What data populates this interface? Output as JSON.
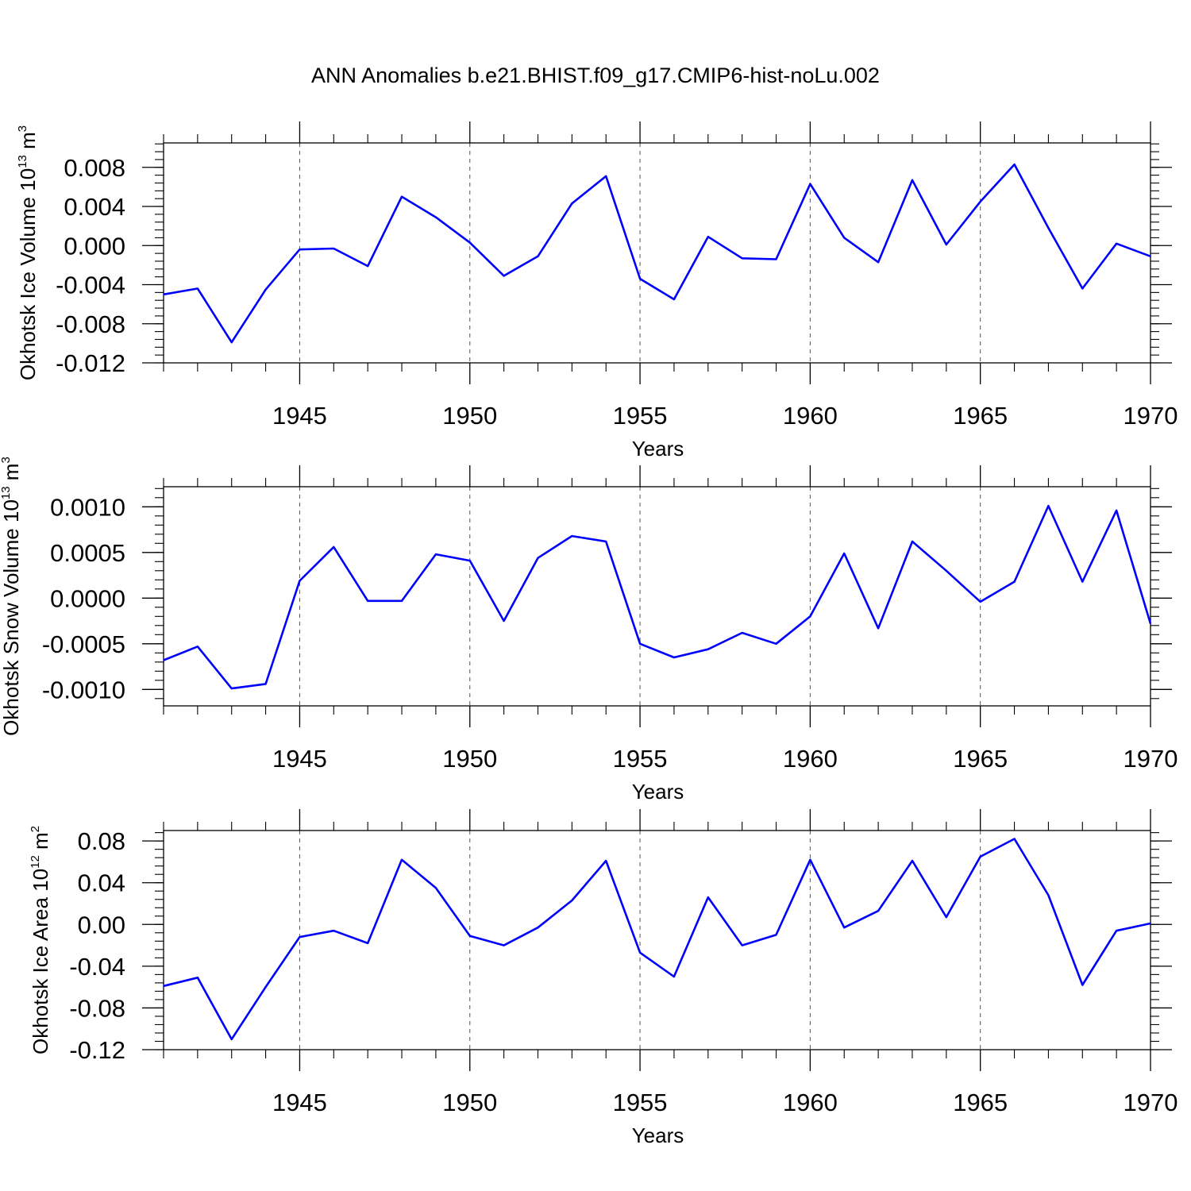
{
  "title": "ANN Anomalies b.e21.BHIST.f09_g17.CMIP6-hist-noLu.002",
  "colors": {
    "series": "#0000ff"
  },
  "chart_data": [
    {
      "type": "line",
      "ylabel_main": "Okhotsk Ice Volume 10",
      "ylabel_exp": "13",
      "ylabel_unit": " m",
      "ylabel_unit_exp": "3",
      "xlabel": "Years",
      "xlim": [
        1941,
        1970
      ],
      "ylim": [
        -0.012,
        0.0105
      ],
      "yticks": [
        -0.012,
        -0.008,
        -0.004,
        0.0,
        0.004,
        0.008
      ],
      "ytick_labels": [
        "-0.012",
        "-0.008",
        "-0.004",
        "0.000",
        "0.004",
        "0.008"
      ],
      "yminor_step": 0.0008,
      "xticks": [
        1945,
        1950,
        1955,
        1960,
        1965,
        1970
      ],
      "xtick_labels": [
        "1945",
        "1950",
        "1955",
        "1960",
        "1965",
        "1970"
      ],
      "grid": "dashed vertical at major x ticks",
      "x": [
        1941,
        1942,
        1943,
        1944,
        1945,
        1946,
        1947,
        1948,
        1949,
        1950,
        1951,
        1952,
        1953,
        1954,
        1955,
        1956,
        1957,
        1958,
        1959,
        1960,
        1961,
        1962,
        1963,
        1964,
        1965,
        1966,
        1967,
        1968,
        1969,
        1970
      ],
      "values": [
        -0.005,
        -0.0044,
        -0.0099,
        -0.0045,
        -0.0004,
        -0.0003,
        -0.0021,
        0.005,
        0.0029,
        0.0003,
        -0.0031,
        -0.0011,
        0.0043,
        0.0071,
        -0.0034,
        -0.0055,
        0.0009,
        -0.0013,
        -0.0014,
        0.0063,
        0.0008,
        -0.0017,
        0.0067,
        0.0001,
        0.0045,
        0.0083,
        0.0018,
        -0.0044,
        0.0002,
        -0.0011
      ]
    },
    {
      "type": "line",
      "ylabel_main": "Okhotsk Snow Volume 10",
      "ylabel_exp": "13",
      "ylabel_unit": " m",
      "ylabel_unit_exp": "3",
      "xlabel": "Years",
      "xlim": [
        1941,
        1970
      ],
      "ylim": [
        -0.00118,
        0.00122
      ],
      "yticks": [
        -0.001,
        -0.0005,
        0.0,
        0.0005,
        0.001
      ],
      "ytick_labels": [
        "-0.0010",
        "-0.0005",
        "0.0000",
        "0.0005",
        "0.0010"
      ],
      "yminor_step": 0.0001,
      "xticks": [
        1945,
        1950,
        1955,
        1960,
        1965,
        1970
      ],
      "xtick_labels": [
        "1945",
        "1950",
        "1955",
        "1960",
        "1965",
        "1970"
      ],
      "grid": "dashed vertical at major x ticks",
      "x": [
        1941,
        1942,
        1943,
        1944,
        1945,
        1946,
        1947,
        1948,
        1949,
        1950,
        1951,
        1952,
        1953,
        1954,
        1955,
        1956,
        1957,
        1958,
        1959,
        1960,
        1961,
        1962,
        1963,
        1964,
        1965,
        1966,
        1967,
        1968,
        1969,
        1970
      ],
      "values": [
        -0.00068,
        -0.00053,
        -0.00099,
        -0.00094,
        0.00019,
        0.00056,
        -3e-05,
        -3e-05,
        0.00048,
        0.00041,
        -0.00025,
        0.00044,
        0.00068,
        0.00062,
        -0.0005,
        -0.00065,
        -0.00056,
        -0.00038,
        -0.0005,
        -0.0002,
        0.00049,
        -0.00033,
        0.00062,
        0.0003,
        -4e-05,
        0.00018,
        0.00101,
        0.00018,
        0.00096,
        -0.00028
      ]
    },
    {
      "type": "line",
      "ylabel_main": "Okhotsk Ice Area 10",
      "ylabel_exp": "12",
      "ylabel_unit": " m",
      "ylabel_unit_exp": "2",
      "xlabel": "Years",
      "xlim": [
        1941,
        1970
      ],
      "ylim": [
        -0.12,
        0.09
      ],
      "yticks": [
        -0.12,
        -0.08,
        -0.04,
        0.0,
        0.04,
        0.08
      ],
      "ytick_labels": [
        "-0.12",
        "-0.08",
        "-0.04",
        "0.00",
        "0.04",
        "0.08"
      ],
      "yminor_step": 0.008,
      "xticks": [
        1945,
        1950,
        1955,
        1960,
        1965,
        1970
      ],
      "xtick_labels": [
        "1945",
        "1950",
        "1955",
        "1960",
        "1965",
        "1970"
      ],
      "grid": "dashed vertical at major x ticks",
      "x": [
        1941,
        1942,
        1943,
        1944,
        1945,
        1946,
        1947,
        1948,
        1949,
        1950,
        1951,
        1952,
        1953,
        1954,
        1955,
        1956,
        1957,
        1958,
        1959,
        1960,
        1961,
        1962,
        1963,
        1964,
        1965,
        1966,
        1967,
        1968,
        1969,
        1970
      ],
      "values": [
        -0.059,
        -0.051,
        -0.11,
        -0.06,
        -0.012,
        -0.006,
        -0.018,
        0.062,
        0.035,
        -0.011,
        -0.02,
        -0.003,
        0.023,
        0.061,
        -0.027,
        -0.05,
        0.026,
        -0.02,
        -0.01,
        0.062,
        -0.003,
        0.013,
        0.061,
        0.007,
        0.065,
        0.082,
        0.028,
        -0.058,
        -0.006,
        0.001
      ]
    }
  ]
}
